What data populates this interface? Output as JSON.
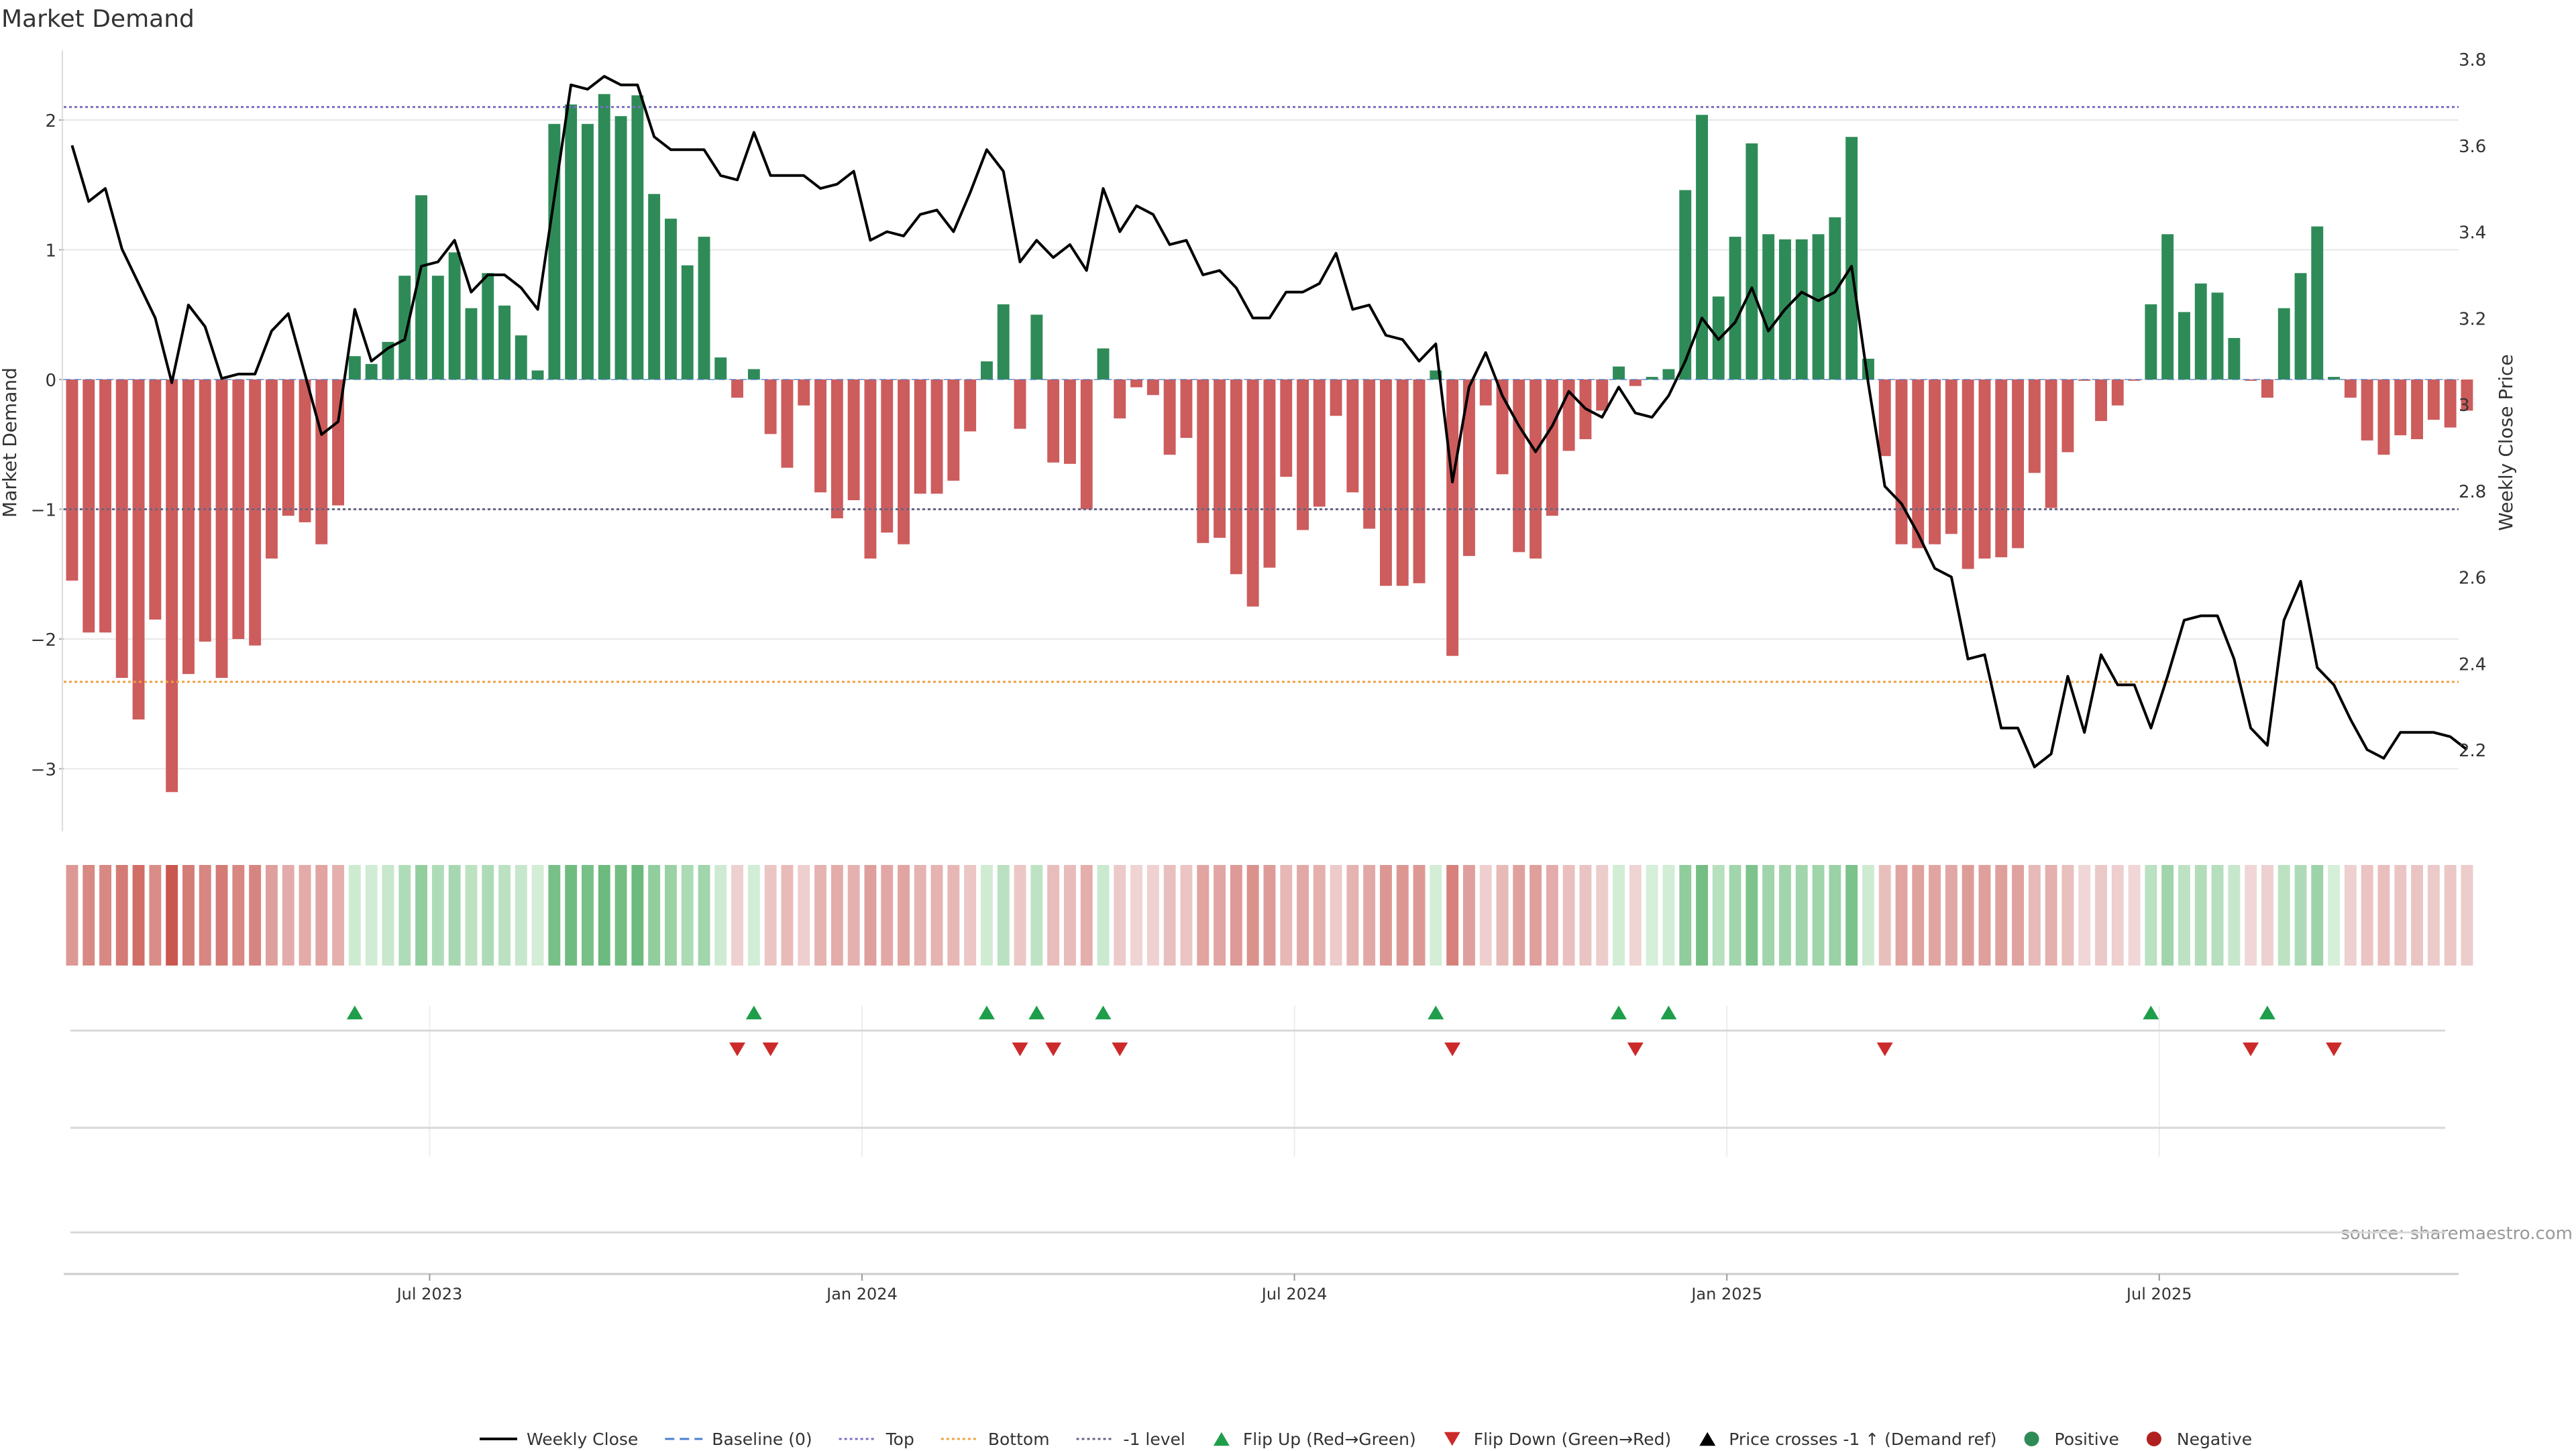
{
  "title": "Market Demand",
  "source": "source: sharemaestro.com",
  "colors": {
    "positive": "#2e8b57",
    "negative": "#cd5c5c",
    "price": "#000000",
    "top": "#7b6fc7",
    "bottom": "#f0a040",
    "minus_one": "#666688",
    "flip_up": "#1e9e4a",
    "flip_down": "#cc2a2a",
    "grid": "#e8e8e8"
  },
  "legend": [
    {
      "label": "Weekly Close",
      "kind": "line-solid",
      "color": "#000000"
    },
    {
      "label": "Baseline (0)",
      "kind": "line-dash",
      "color": "#4a7fd0"
    },
    {
      "label": "Top",
      "kind": "line-dot",
      "color": "#7b6fc7"
    },
    {
      "label": "Bottom",
      "kind": "line-dot",
      "color": "#f0a040"
    },
    {
      "label": "-1 level",
      "kind": "line-dot",
      "color": "#666688"
    },
    {
      "label": "Flip Up (Red→Green)",
      "kind": "tri-up",
      "color": "#1e9e4a"
    },
    {
      "label": "Flip Down (Green→Red)",
      "kind": "tri-down",
      "color": "#cc2a2a"
    },
    {
      "label": "Price crosses -1 ↑ (Demand ref)",
      "kind": "tri-up",
      "color": "#000000"
    },
    {
      "label": "Positive",
      "kind": "dot",
      "color": "#2e8b57"
    },
    {
      "label": "Negative",
      "kind": "dot",
      "color": "#b02020"
    }
  ],
  "chart_data": {
    "type": "bar",
    "title": "Market Demand",
    "xlabel": "",
    "ylabel_left": "Market Demand",
    "ylabel_right": "Weekly Close Price",
    "ylim_left": [
      -3.5,
      2.5
    ],
    "ylim_right": [
      2.05,
      3.8
    ],
    "yticks_left": [
      "−3",
      "−2",
      "−1",
      "0",
      "1",
      "2"
    ],
    "yticks_right": [
      "2.2",
      "2.4",
      "2.6",
      "2.8",
      "3",
      "3.2",
      "3.4",
      "3.6",
      "3.8"
    ],
    "x_tick_labels": [
      "Jul 2023",
      "Jan 2024",
      "Jul 2024",
      "Jan 2025",
      "Jul 2025"
    ],
    "x_tick_weeks": [
      22,
      48,
      74,
      100,
      126
    ],
    "reference_lines": {
      "top": 2.1,
      "bottom": -2.33,
      "minus_one": -1.0,
      "baseline": 0
    },
    "weeks": 144,
    "demand": [
      -1.55,
      -1.95,
      -1.95,
      -2.3,
      -2.62,
      -1.85,
      -3.18,
      -2.27,
      -2.02,
      -2.3,
      -2.0,
      -2.05,
      -1.38,
      -1.05,
      -1.1,
      -1.27,
      -0.97,
      0.18,
      0.12,
      0.29,
      0.8,
      1.42,
      0.8,
      0.98,
      0.55,
      0.82,
      0.57,
      0.34,
      0.07,
      1.97,
      2.12,
      1.97,
      2.2,
      2.03,
      2.19,
      1.43,
      1.24,
      0.88,
      1.1,
      0.17,
      -0.14,
      0.08,
      -0.42,
      -0.68,
      -0.2,
      -0.87,
      -1.07,
      -0.93,
      -1.38,
      -1.18,
      -1.27,
      -0.88,
      -0.88,
      -0.78,
      -0.4,
      0.14,
      0.58,
      -0.38,
      0.5,
      -0.64,
      -0.65,
      -1.0,
      0.24,
      -0.3,
      -0.06,
      -0.12,
      -0.58,
      -0.45,
      -1.26,
      -1.22,
      -1.5,
      -1.75,
      -1.45,
      -0.75,
      -1.16,
      -0.98,
      -0.28,
      -0.87,
      -1.15,
      -1.59,
      -1.59,
      -1.57,
      0.07,
      -2.13,
      -1.36,
      -0.2,
      -0.73,
      -1.33,
      -1.38,
      -1.05,
      -0.55,
      -0.46,
      -0.24,
      0.1,
      -0.05,
      0.02,
      0.08,
      1.46,
      2.04,
      0.64,
      1.1,
      1.82,
      1.12,
      1.08,
      1.08,
      1.12,
      1.25,
      1.87,
      0.16,
      -0.59,
      -1.27,
      -1.3,
      -1.27,
      -1.19,
      -1.46,
      -1.38,
      -1.37,
      -1.3,
      -0.72,
      -0.99,
      -0.56,
      -0.01,
      -0.32,
      -0.2,
      -0.01,
      0.58,
      1.12,
      0.52,
      0.74,
      0.67,
      0.32,
      -0.01,
      -0.14,
      0.55,
      0.82,
      1.18,
      0.02,
      -0.14,
      -0.47,
      -0.58,
      -0.43,
      -0.46,
      -0.31,
      -0.37,
      -0.24
    ],
    "price": [
      3.6,
      3.47,
      3.5,
      3.36,
      3.28,
      3.2,
      3.05,
      3.23,
      3.18,
      3.06,
      3.07,
      3.07,
      3.17,
      3.21,
      3.07,
      2.93,
      2.96,
      3.22,
      3.1,
      3.13,
      3.15,
      3.32,
      3.33,
      3.38,
      3.26,
      3.3,
      3.3,
      3.27,
      3.22,
      3.48,
      3.74,
      3.73,
      3.76,
      3.74,
      3.74,
      3.62,
      3.59,
      3.59,
      3.59,
      3.53,
      3.52,
      3.63,
      3.53,
      3.53,
      3.53,
      3.5,
      3.51,
      3.54,
      3.38,
      3.4,
      3.39,
      3.44,
      3.45,
      3.4,
      3.49,
      3.59,
      3.54,
      3.33,
      3.38,
      3.34,
      3.37,
      3.31,
      3.5,
      3.4,
      3.46,
      3.44,
      3.37,
      3.38,
      3.3,
      3.31,
      3.27,
      3.2,
      3.2,
      3.26,
      3.26,
      3.28,
      3.35,
      3.22,
      3.23,
      3.16,
      3.15,
      3.1,
      3.14,
      2.82,
      3.04,
      3.12,
      3.02,
      2.95,
      2.89,
      2.95,
      3.03,
      2.99,
      2.97,
      3.04,
      2.98,
      2.97,
      3.02,
      3.1,
      3.2,
      3.15,
      3.19,
      3.27,
      3.17,
      3.22,
      3.26,
      3.24,
      3.26,
      3.32,
      3.05,
      2.81,
      2.77,
      2.7,
      2.62,
      2.6,
      2.41,
      2.42,
      2.25,
      2.25,
      2.16,
      2.19,
      2.37,
      2.24,
      2.42,
      2.35,
      2.35,
      2.25,
      2.37,
      2.5,
      2.51,
      2.51,
      2.41,
      2.25,
      2.21,
      2.5,
      2.59,
      2.39,
      2.35,
      2.27,
      2.2,
      2.18,
      2.24,
      2.24,
      2.24,
      2.23,
      2.2
    ],
    "flip_up_weeks": [
      17,
      41,
      55,
      58,
      62,
      82,
      93,
      96,
      125,
      132
    ],
    "flip_down_weeks": [
      40,
      42,
      57,
      59,
      63,
      83,
      94,
      109,
      131,
      136
    ]
  }
}
